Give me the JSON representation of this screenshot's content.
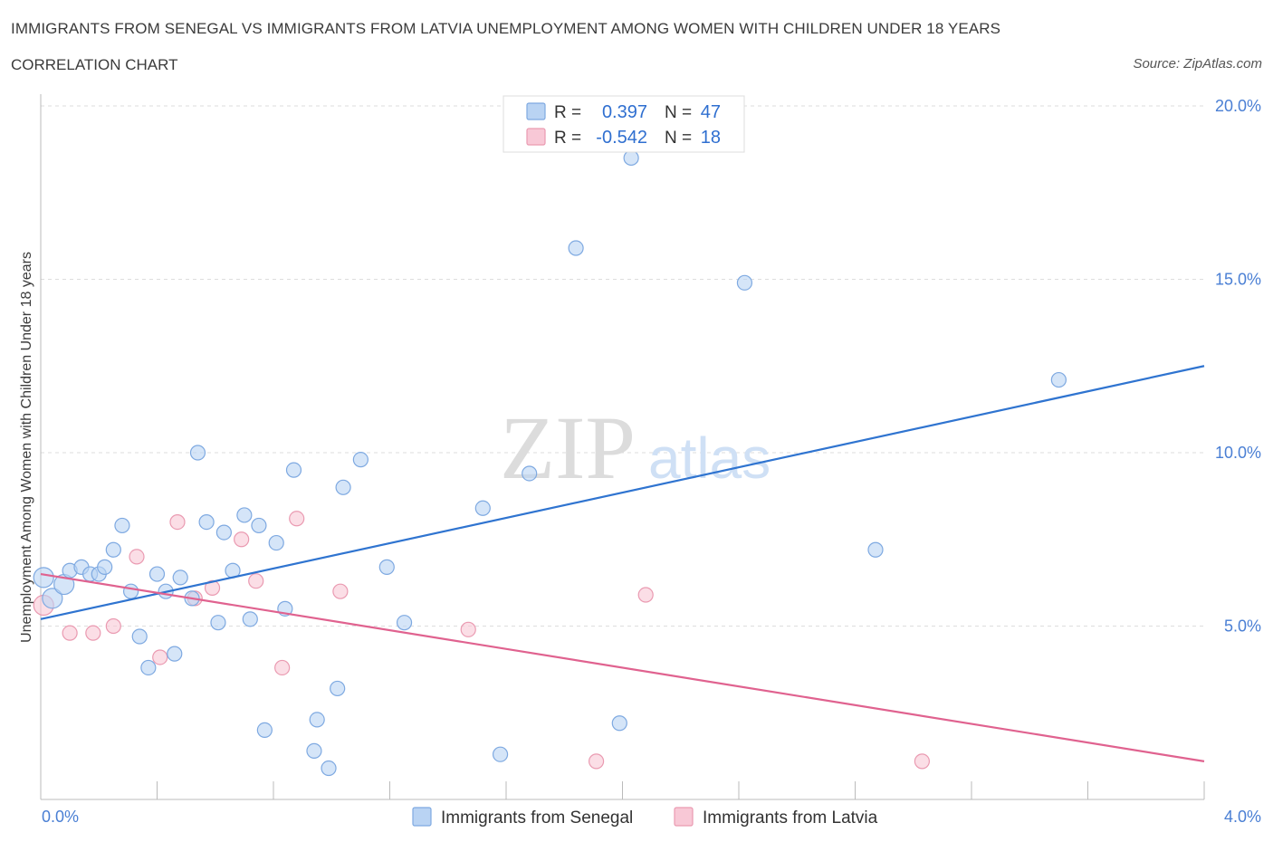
{
  "title": "IMMIGRANTS FROM SENEGAL VS IMMIGRANTS FROM LATVIA UNEMPLOYMENT AMONG WOMEN WITH CHILDREN UNDER 18 YEARS",
  "subtitle": "CORRELATION CHART",
  "source": "Source: ZipAtlas.com",
  "watermark": {
    "zip": "ZIP",
    "atlas": "atlas"
  },
  "colors": {
    "senegal_fill": "#b9d3f3",
    "senegal_stroke": "#7ea9e1",
    "senegal_line": "#2f74d0",
    "latvia_fill": "#f8c8d6",
    "latvia_stroke": "#ea9ab1",
    "latvia_line": "#e0628f",
    "grid": "#dddddd",
    "axis_text": "#4a7fd4"
  },
  "stats": {
    "senegal": {
      "r_label": "R =",
      "r_value": "0.397",
      "n_label": "N =",
      "n_value": "47"
    },
    "latvia": {
      "r_label": "R =",
      "r_value": "-0.542",
      "n_label": "N =",
      "n_value": "18"
    }
  },
  "chart_data": {
    "type": "scatter",
    "title": "IMMIGRANTS FROM SENEGAL VS IMMIGRANTS FROM LATVIA UNEMPLOYMENT AMONG WOMEN WITH CHILDREN UNDER 18 YEARS",
    "xlabel": "",
    "ylabel": "Unemployment Among Women with Children Under 18 years",
    "xlim": [
      0,
      4
    ],
    "ylim": [
      0,
      20
    ],
    "x_tick_labels": [
      "0.0%",
      "4.0%"
    ],
    "y_ticks": [
      5,
      10,
      15,
      20
    ],
    "y_tick_labels": [
      "5.0%",
      "10.0%",
      "15.0%",
      "20.0%"
    ],
    "legend_position": "bottom",
    "series": [
      {
        "name": "Immigrants from Senegal",
        "color": "#7ea9e1",
        "trend": {
          "x": [
            0,
            4
          ],
          "y": [
            5.2,
            12.5
          ]
        },
        "points": [
          {
            "x": 0.01,
            "y": 6.4,
            "big": true
          },
          {
            "x": 0.04,
            "y": 5.8,
            "big": true
          },
          {
            "x": 0.08,
            "y": 6.2,
            "big": true
          },
          {
            "x": 0.1,
            "y": 6.6
          },
          {
            "x": 0.14,
            "y": 6.7
          },
          {
            "x": 0.17,
            "y": 6.5
          },
          {
            "x": 0.2,
            "y": 6.5
          },
          {
            "x": 0.22,
            "y": 6.7
          },
          {
            "x": 0.25,
            "y": 7.2
          },
          {
            "x": 0.28,
            "y": 7.9
          },
          {
            "x": 0.31,
            "y": 6.0
          },
          {
            "x": 0.34,
            "y": 4.7
          },
          {
            "x": 0.37,
            "y": 3.8
          },
          {
            "x": 0.4,
            "y": 6.5
          },
          {
            "x": 0.43,
            "y": 6.0
          },
          {
            "x": 0.46,
            "y": 4.2
          },
          {
            "x": 0.48,
            "y": 6.4
          },
          {
            "x": 0.52,
            "y": 5.8
          },
          {
            "x": 0.54,
            "y": 10.0
          },
          {
            "x": 0.57,
            "y": 8.0
          },
          {
            "x": 0.61,
            "y": 5.1
          },
          {
            "x": 0.63,
            "y": 7.7
          },
          {
            "x": 0.66,
            "y": 6.6
          },
          {
            "x": 0.7,
            "y": 8.2
          },
          {
            "x": 0.72,
            "y": 5.2
          },
          {
            "x": 0.75,
            "y": 7.9
          },
          {
            "x": 0.77,
            "y": 2.0
          },
          {
            "x": 0.81,
            "y": 7.4
          },
          {
            "x": 0.84,
            "y": 5.5
          },
          {
            "x": 0.87,
            "y": 9.5
          },
          {
            "x": 0.94,
            "y": 1.4
          },
          {
            "x": 0.95,
            "y": 2.3
          },
          {
            "x": 0.99,
            "y": 0.9
          },
          {
            "x": 1.02,
            "y": 3.2
          },
          {
            "x": 1.04,
            "y": 9.0
          },
          {
            "x": 1.1,
            "y": 9.8
          },
          {
            "x": 1.19,
            "y": 6.7
          },
          {
            "x": 1.25,
            "y": 5.1
          },
          {
            "x": 1.52,
            "y": 8.4
          },
          {
            "x": 1.58,
            "y": 1.3
          },
          {
            "x": 1.68,
            "y": 9.4
          },
          {
            "x": 1.84,
            "y": 15.9
          },
          {
            "x": 1.99,
            "y": 2.2
          },
          {
            "x": 2.03,
            "y": 18.5
          },
          {
            "x": 2.42,
            "y": 14.9
          },
          {
            "x": 2.87,
            "y": 7.2
          },
          {
            "x": 3.5,
            "y": 12.1
          }
        ]
      },
      {
        "name": "Immigrants from Latvia",
        "color": "#ea9ab1",
        "trend": {
          "x": [
            0,
            4
          ],
          "y": [
            6.5,
            1.1
          ]
        },
        "points": [
          {
            "x": 0.01,
            "y": 5.6,
            "big": true
          },
          {
            "x": 0.1,
            "y": 4.8
          },
          {
            "x": 0.18,
            "y": 4.8
          },
          {
            "x": 0.25,
            "y": 5.0
          },
          {
            "x": 0.33,
            "y": 7.0
          },
          {
            "x": 0.41,
            "y": 4.1
          },
          {
            "x": 0.47,
            "y": 8.0
          },
          {
            "x": 0.53,
            "y": 5.8
          },
          {
            "x": 0.59,
            "y": 6.1
          },
          {
            "x": 0.69,
            "y": 7.5
          },
          {
            "x": 0.74,
            "y": 6.3
          },
          {
            "x": 0.83,
            "y": 3.8
          },
          {
            "x": 0.88,
            "y": 8.1
          },
          {
            "x": 1.03,
            "y": 6.0
          },
          {
            "x": 1.47,
            "y": 4.9
          },
          {
            "x": 1.91,
            "y": 1.1
          },
          {
            "x": 2.08,
            "y": 5.9
          },
          {
            "x": 3.03,
            "y": 1.1
          }
        ]
      }
    ]
  }
}
